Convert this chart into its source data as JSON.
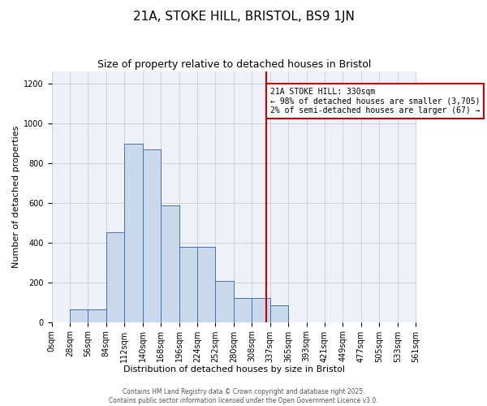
{
  "title": "21A, STOKE HILL, BRISTOL, BS9 1JN",
  "subtitle": "Size of property relative to detached houses in Bristol",
  "xlabel": "Distribution of detached houses by size in Bristol",
  "ylabel": "Number of detached properties",
  "bar_edges": [
    0,
    28,
    56,
    84,
    112,
    140,
    168,
    196,
    224,
    252,
    280,
    308,
    336,
    364,
    392,
    420,
    448,
    476,
    504,
    532,
    560
  ],
  "bar_heights": [
    0,
    65,
    65,
    450,
    895,
    870,
    585,
    380,
    380,
    205,
    120,
    120,
    85,
    0,
    0,
    0,
    0,
    0,
    0,
    0
  ],
  "bar_color": "#c9d9eb",
  "bar_edge_color": "#4472a8",
  "vline_x": 330,
  "vline_color": "#cc0000",
  "ylim": [
    0,
    1260
  ],
  "yticks": [
    0,
    200,
    400,
    600,
    800,
    1000,
    1200
  ],
  "xtick_labels": [
    "0sqm",
    "28sqm",
    "56sqm",
    "84sqm",
    "112sqm",
    "140sqm",
    "168sqm",
    "196sqm",
    "224sqm",
    "252sqm",
    "280sqm",
    "308sqm",
    "337sqm",
    "365sqm",
    "393sqm",
    "421sqm",
    "449sqm",
    "477sqm",
    "505sqm",
    "533sqm",
    "561sqm"
  ],
  "annotation_text": "21A STOKE HILL: 330sqm\n← 98% of detached houses are smaller (3,705)\n2% of semi-detached houses are larger (67) →",
  "annotation_box_color": "#ffffff",
  "annotation_box_edgecolor": "#cc0000",
  "grid_color": "#cccccc",
  "background_color": "#eef2f8",
  "footer_line1": "Contains HM Land Registry data © Crown copyright and database right 2025.",
  "footer_line2": "Contains public sector information licensed under the Open Government Licence v3.0.",
  "title_fontsize": 11,
  "subtitle_fontsize": 9,
  "axis_label_fontsize": 8,
  "tick_fontsize": 7
}
